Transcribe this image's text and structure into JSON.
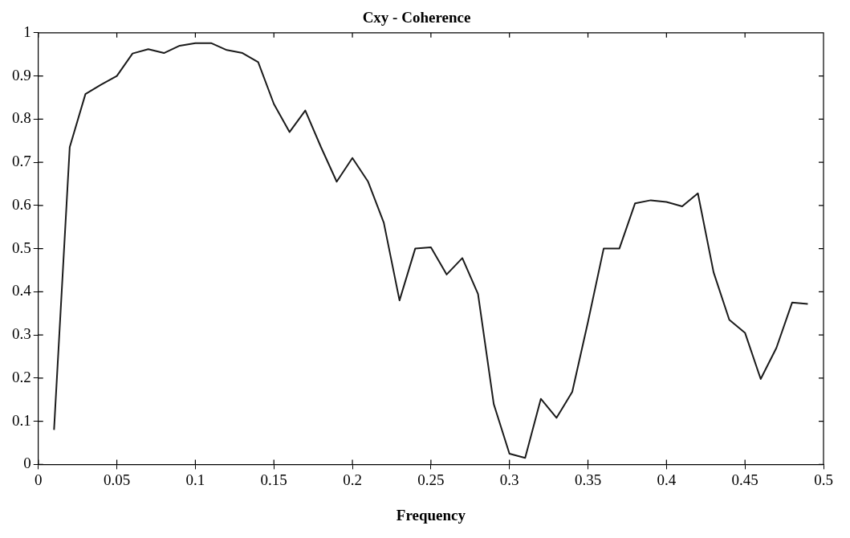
{
  "chart_data": {
    "type": "line",
    "title": "Cxy - Coherence",
    "xlabel": "Frequency",
    "x": [
      0.01,
      0.02,
      0.03,
      0.04,
      0.05,
      0.06,
      0.07,
      0.08,
      0.09,
      0.1,
      0.11,
      0.12,
      0.13,
      0.14,
      0.15,
      0.16,
      0.17,
      0.18,
      0.19,
      0.2,
      0.21,
      0.22,
      0.23,
      0.24,
      0.25,
      0.26,
      0.27,
      0.28,
      0.29,
      0.3,
      0.31,
      0.32,
      0.33,
      0.34,
      0.35,
      0.36,
      0.37,
      0.38,
      0.39,
      0.4,
      0.41,
      0.42,
      0.43,
      0.44,
      0.45,
      0.46,
      0.47,
      0.48,
      0.49
    ],
    "series": [
      {
        "color": "#1a1a1a",
        "values": [
          0.08,
          0.735,
          0.858,
          0.88,
          0.9,
          0.952,
          0.962,
          0.953,
          0.97,
          0.976,
          0.976,
          0.96,
          0.953,
          0.932,
          0.835,
          0.77,
          0.82,
          0.735,
          0.655,
          0.71,
          0.655,
          0.56,
          0.38,
          0.5,
          0.503,
          0.44,
          0.478,
          0.395,
          0.14,
          0.025,
          0.015,
          0.152,
          0.108,
          0.168,
          0.33,
          0.5,
          0.5,
          0.605,
          0.612,
          0.608,
          0.598,
          0.628,
          0.445,
          0.335,
          0.305,
          0.198,
          0.27,
          0.375,
          0.372
        ]
      }
    ],
    "xlim": [
      0,
      0.5
    ],
    "xticks": [
      0,
      {
        "value": 0.05,
        "label": "0.05"
      },
      {
        "value": 0.1,
        "label": "0.1"
      },
      {
        "value": 0.15,
        "label": "0.15"
      },
      {
        "value": 0.2,
        "label": "0.2"
      },
      {
        "value": 0.25,
        "label": "0.25"
      },
      {
        "value": 0.3,
        "label": "0.3"
      },
      {
        "value": 0.35,
        "label": "0.35"
      },
      {
        "value": 0.4,
        "label": "0.4"
      },
      {
        "value": 0.45,
        "label": "0.45"
      },
      {
        "value": 0.5,
        "label": "0.5"
      }
    ],
    "ylim": [
      0,
      1
    ],
    "yticks": [
      0,
      0.1,
      0.2,
      0.3,
      0.4,
      0.5,
      0.6,
      0.7,
      0.8,
      0.9,
      1
    ],
    "grid": false,
    "legend": false,
    "marker": "none",
    "line_style": "solid"
  }
}
